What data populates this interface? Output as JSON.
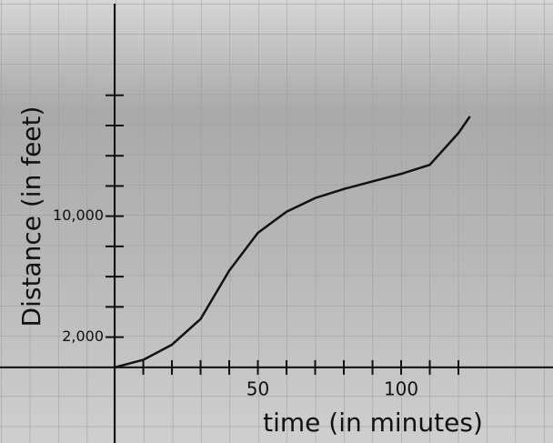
{
  "chart_data": {
    "type": "line",
    "x_label": "time (in minutes)",
    "y_label": "Distance (in feet)",
    "x": [
      0,
      10,
      20,
      30,
      40,
      50,
      60,
      70,
      80,
      90,
      100,
      110,
      120,
      124
    ],
    "series": [
      {
        "color": "#111111",
        "values": [
          0,
          500,
          1500,
          3200,
          6400,
          8900,
          10300,
          11200,
          11800,
          12300,
          12800,
          13400,
          15500,
          16600
        ]
      }
    ],
    "xlim": [
      -40,
      153
    ],
    "ylim": [
      -5000,
      24300
    ],
    "xticks": [
      50,
      100
    ],
    "x_minor_ticks": [
      10,
      20,
      30,
      40,
      60,
      70,
      80,
      90,
      110,
      120
    ],
    "yticks": [
      {
        "value": 2000,
        "label": "2,000"
      },
      {
        "value": 10000,
        "label": "10,000"
      }
    ],
    "y_minor_ticks": [
      4000,
      6000,
      8000,
      12000,
      14000,
      16000,
      18000
    ]
  }
}
